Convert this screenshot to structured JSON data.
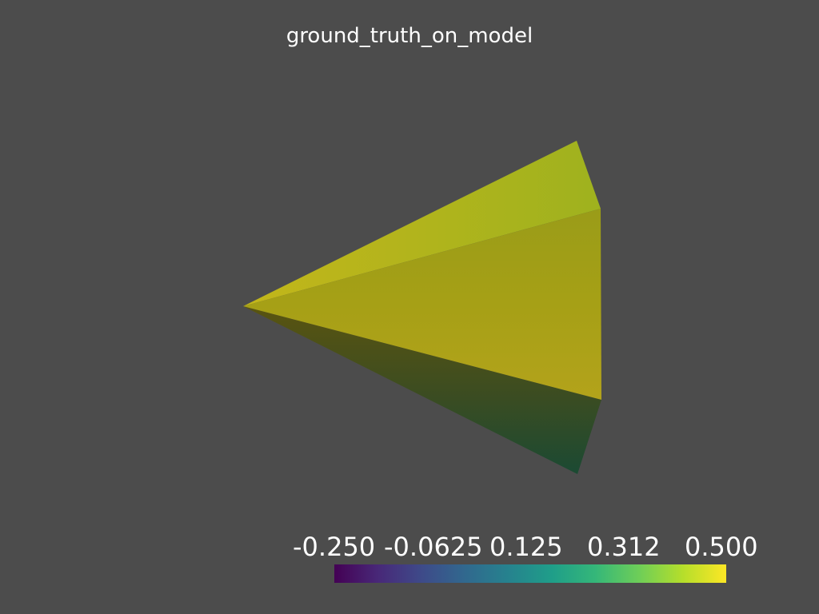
{
  "title": "ground_truth_on_model",
  "colormap": {
    "name": "viridis",
    "colors": [
      "#440154",
      "#482878",
      "#3e4a89",
      "#31688e",
      "#26828e",
      "#1f9e89",
      "#35b779",
      "#6ece58",
      "#b5de2b",
      "#fde725"
    ]
  },
  "scalar_bar": {
    "range": [
      -0.25,
      0.5
    ],
    "tick_labels": [
      "-0.250",
      "-0.0625",
      "0.125",
      "0.312",
      "0.500"
    ]
  },
  "colors": {
    "background": "#4c4c4c",
    "text": "#ffffff"
  }
}
